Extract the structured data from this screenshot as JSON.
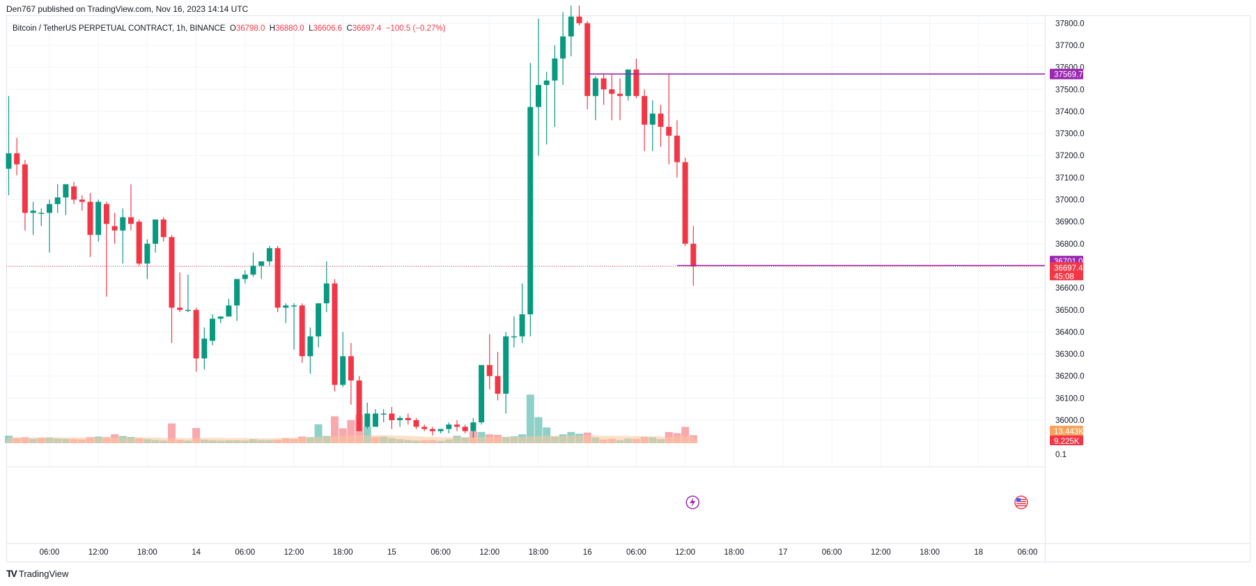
{
  "header": {
    "publish_line": "Den767 published on TradingView.com, Nov 16, 2023 14:14 UTC"
  },
  "legend": {
    "symbol": "Bitcoin / TetherUS PERPETUAL CONTRACT, 1h, BINANCE",
    "open_label": "O",
    "open": "36798.0",
    "high_label": "H",
    "high": "36880.0",
    "low_label": "L",
    "low": "36606.6",
    "close_label": "C",
    "close": "36697.4",
    "change": "−100.5 (−0.27%)"
  },
  "footer": {
    "brand": "TradingView"
  },
  "colors": {
    "up": "#089981",
    "down": "#f23645",
    "up_vol": "#8fd1c8",
    "down_vol": "#f7a9ae",
    "level_line": "#9c27b0",
    "vol_ma": "#fcc79e",
    "grid": "#f0f3fa"
  },
  "chart_data": {
    "type": "candlestick",
    "interval": "1h",
    "y_axis": {
      "ticks": [
        36000,
        36100,
        36200,
        36300,
        36400,
        36500,
        36600,
        36700,
        36800,
        36900,
        37000,
        37100,
        37200,
        37300,
        37400,
        37500,
        37600,
        37700,
        37800
      ],
      "tick_labels": [
        "36000.0",
        "36100.0",
        "36200.0",
        "36300.0",
        "36400.0",
        "36500.0",
        "36600.0",
        "",
        "36800.0",
        "36900.0",
        "37000.0",
        "37100.0",
        "37200.0",
        "37300.0",
        "37400.0",
        "37500.0",
        "37600.0",
        "37700.0",
        "37800.0"
      ],
      "range": [
        35880,
        37860
      ]
    },
    "x_axis": {
      "tick_labels": [
        "06:00",
        "12:00",
        "18:00",
        "14",
        "06:00",
        "12:00",
        "18:00",
        "15",
        "06:00",
        "12:00",
        "18:00",
        "16",
        "06:00",
        "12:00",
        "18:00",
        "17",
        "06:00",
        "12:00",
        "18:00",
        "18",
        "06:00"
      ],
      "tick_bar_index": [
        5,
        11,
        17,
        23,
        29,
        35,
        41,
        47,
        53,
        59,
        65,
        71,
        77,
        83,
        89,
        95,
        101,
        107,
        113,
        119,
        125
      ]
    },
    "candles": [
      [
        37140,
        37470,
        37020,
        37210
      ],
      [
        37210,
        37280,
        37110,
        37160
      ],
      [
        37160,
        37180,
        36860,
        36940
      ],
      [
        36940,
        36990,
        36840,
        36950
      ],
      [
        36940,
        36960,
        36880,
        36940
      ],
      [
        36940,
        37000,
        36760,
        36980
      ],
      [
        36980,
        37070,
        36940,
        37010
      ],
      [
        37010,
        37060,
        36930,
        37070
      ],
      [
        37060,
        37080,
        36980,
        37000
      ],
      [
        37000,
        37020,
        36950,
        36990
      ],
      [
        36990,
        37030,
        36740,
        36840
      ],
      [
        36840,
        37000,
        36810,
        36990
      ],
      [
        36980,
        36990,
        36560,
        36890
      ],
      [
        36880,
        36940,
        36800,
        36860
      ],
      [
        36860,
        36960,
        36710,
        36920
      ],
      [
        36920,
        37070,
        36860,
        36890
      ],
      [
        36900,
        36910,
        36700,
        36710
      ],
      [
        36710,
        36820,
        36640,
        36800
      ],
      [
        36800,
        36910,
        36760,
        36910
      ],
      [
        36910,
        36920,
        36810,
        36830
      ],
      [
        36830,
        36840,
        36350,
        36510
      ],
      [
        36510,
        36670,
        36490,
        36500
      ],
      [
        36500,
        36660,
        36490,
        36500
      ],
      [
        36500,
        36510,
        36220,
        36280
      ],
      [
        36280,
        36420,
        36230,
        36370
      ],
      [
        36360,
        36480,
        36340,
        36460
      ],
      [
        36460,
        36470,
        36440,
        36470
      ],
      [
        36470,
        36550,
        36470,
        36520
      ],
      [
        36520,
        36640,
        36450,
        36640
      ],
      [
        36640,
        36680,
        36620,
        36660
      ],
      [
        36660,
        36760,
        36650,
        36700
      ],
      [
        36700,
        36720,
        36640,
        36720
      ],
      [
        36720,
        36790,
        36700,
        36780
      ],
      [
        36780,
        36790,
        36490,
        36510
      ],
      [
        36510,
        36530,
        36440,
        36520
      ],
      [
        36520,
        36530,
        36320,
        36520
      ],
      [
        36520,
        36530,
        36260,
        36290
      ],
      [
        36290,
        36420,
        36210,
        36380
      ],
      [
        36380,
        36530,
        36330,
        36530
      ],
      [
        36530,
        36720,
        36490,
        36620
      ],
      [
        36620,
        36640,
        36130,
        36160
      ],
      [
        36160,
        36400,
        36150,
        36290
      ],
      [
        36290,
        36350,
        36070,
        36180
      ],
      [
        36180,
        36200,
        35950,
        35950
      ],
      [
        35970,
        36080,
        35960,
        36030
      ],
      [
        35970,
        36050,
        35970,
        36030
      ],
      [
        36030,
        36050,
        35990,
        36030
      ],
      [
        36030,
        36060,
        35960,
        36000
      ],
      [
        36000,
        36020,
        35970,
        36010
      ],
      [
        36010,
        36030,
        35980,
        36000
      ],
      [
        36000,
        36010,
        35960,
        35970
      ],
      [
        35970,
        35980,
        35950,
        35960
      ],
      [
        35960,
        35970,
        35930,
        35950
      ],
      [
        35950,
        35960,
        35940,
        35960
      ],
      [
        35960,
        35990,
        35940,
        35980
      ],
      [
        35980,
        36000,
        35950,
        35970
      ],
      [
        35970,
        35980,
        35940,
        35950
      ],
      [
        35950,
        36010,
        35920,
        35990
      ],
      [
        35990,
        36250,
        35980,
        36250
      ],
      [
        36250,
        36390,
        36140,
        36200
      ],
      [
        36200,
        36310,
        36090,
        36120
      ],
      [
        36120,
        36400,
        36030,
        36380
      ],
      [
        36380,
        36470,
        36330,
        36380
      ],
      [
        36380,
        36620,
        36350,
        36480
      ],
      [
        36480,
        37620,
        36380,
        37420
      ],
      [
        37420,
        37820,
        37200,
        37520
      ],
      [
        37520,
        37580,
        37250,
        37540
      ],
      [
        37540,
        37700,
        37330,
        37640
      ],
      [
        37640,
        37850,
        37520,
        37740
      ],
      [
        37740,
        37880,
        37650,
        37830
      ],
      [
        37830,
        37880,
        37790,
        37800
      ],
      [
        37800,
        37810,
        37410,
        37470
      ],
      [
        37470,
        37560,
        37360,
        37550
      ],
      [
        37550,
        37570,
        37430,
        37500
      ],
      [
        37500,
        37570,
        37360,
        37480
      ],
      [
        37480,
        37550,
        37360,
        37470
      ],
      [
        37470,
        37590,
        37450,
        37590
      ],
      [
        37590,
        37640,
        37460,
        37470
      ],
      [
        37470,
        37500,
        37220,
        37340
      ],
      [
        37340,
        37450,
        37220,
        37390
      ],
      [
        37390,
        37430,
        37240,
        37330
      ],
      [
        37330,
        37570,
        37160,
        37290
      ],
      [
        37290,
        37360,
        37100,
        37170
      ],
      [
        37170,
        37190,
        36790,
        36800
      ],
      [
        36800,
        36880,
        36610,
        36697
      ]
    ],
    "volumes": [
      [
        1.3,
        "up"
      ],
      [
        0.9,
        "down"
      ],
      [
        1.05,
        "down"
      ],
      [
        0.75,
        "up"
      ],
      [
        0.95,
        "down"
      ],
      [
        1.0,
        "up"
      ],
      [
        0.8,
        "up"
      ],
      [
        0.75,
        "up"
      ],
      [
        0.7,
        "down"
      ],
      [
        0.65,
        "down"
      ],
      [
        1.05,
        "down"
      ],
      [
        1.15,
        "up"
      ],
      [
        1.05,
        "down"
      ],
      [
        1.55,
        "down"
      ],
      [
        1.25,
        "up"
      ],
      [
        1.1,
        "up"
      ],
      [
        0.85,
        "down"
      ],
      [
        0.7,
        "up"
      ],
      [
        0.55,
        "up"
      ],
      [
        0.45,
        "up"
      ],
      [
        3.45,
        "down"
      ],
      [
        0.55,
        "down"
      ],
      [
        0.45,
        "up"
      ],
      [
        2.65,
        "down"
      ],
      [
        0.6,
        "up"
      ],
      [
        0.5,
        "up"
      ],
      [
        0.45,
        "up"
      ],
      [
        0.5,
        "up"
      ],
      [
        0.5,
        "up"
      ],
      [
        0.45,
        "up"
      ],
      [
        0.7,
        "up"
      ],
      [
        0.55,
        "up"
      ],
      [
        0.55,
        "up"
      ],
      [
        0.6,
        "down"
      ],
      [
        0.85,
        "down"
      ],
      [
        0.75,
        "down"
      ],
      [
        1.15,
        "down"
      ],
      [
        1.05,
        "up"
      ],
      [
        3.3,
        "up"
      ],
      [
        1.25,
        "up"
      ],
      [
        4.7,
        "down"
      ],
      [
        2.6,
        "down"
      ],
      [
        4.05,
        "down"
      ],
      [
        5.0,
        "down"
      ],
      [
        2.85,
        "up"
      ],
      [
        1.05,
        "down"
      ],
      [
        1.15,
        "up"
      ],
      [
        0.9,
        "up"
      ],
      [
        0.7,
        "up"
      ],
      [
        0.55,
        "up"
      ],
      [
        0.45,
        "up"
      ],
      [
        0.5,
        "down"
      ],
      [
        0.55,
        "down"
      ],
      [
        0.4,
        "up"
      ],
      [
        0.65,
        "up"
      ],
      [
        1.3,
        "up"
      ],
      [
        1.0,
        "up"
      ],
      [
        2.05,
        "down"
      ],
      [
        1.95,
        "up"
      ],
      [
        1.55,
        "down"
      ],
      [
        1.45,
        "down"
      ],
      [
        1.1,
        "up"
      ],
      [
        1.2,
        "up"
      ],
      [
        1.55,
        "up"
      ],
      [
        8.5,
        "up"
      ],
      [
        4.55,
        "up"
      ],
      [
        2.75,
        "up"
      ],
      [
        1.15,
        "up"
      ],
      [
        1.55,
        "up"
      ],
      [
        1.95,
        "up"
      ],
      [
        1.65,
        "up"
      ],
      [
        1.85,
        "down"
      ],
      [
        1.0,
        "up"
      ],
      [
        0.65,
        "down"
      ],
      [
        0.75,
        "down"
      ],
      [
        0.55,
        "up"
      ],
      [
        0.8,
        "up"
      ],
      [
        0.75,
        "down"
      ],
      [
        1.1,
        "down"
      ],
      [
        1.05,
        "up"
      ],
      [
        0.7,
        "up"
      ],
      [
        1.95,
        "down"
      ],
      [
        1.75,
        "down"
      ],
      [
        2.85,
        "down"
      ],
      [
        1.4,
        "down"
      ]
    ],
    "volume_ma": [
      1.0,
      1.0,
      1.0,
      1.0,
      1.0,
      1.0,
      1.0,
      1.0,
      1.0,
      1.0,
      1.0,
      1.0,
      1.0,
      1.0,
      1.05,
      1.05,
      1.05,
      1.0,
      1.0,
      0.95,
      0.9,
      0.9,
      0.9,
      0.95,
      0.95,
      0.95,
      0.95,
      0.9,
      0.9,
      0.9,
      0.85,
      0.85,
      0.85,
      0.9,
      0.95,
      0.95,
      1.0,
      1.05,
      1.1,
      1.15,
      1.2,
      1.25,
      1.35,
      1.4,
      1.4,
      1.4,
      1.4,
      1.35,
      1.3,
      1.25,
      1.2,
      1.15,
      1.1,
      1.05,
      1.05,
      1.05,
      1.05,
      1.1,
      1.1,
      1.1,
      1.1,
      1.1,
      1.1,
      1.1,
      1.2,
      1.25,
      1.3,
      1.3,
      1.3,
      1.35,
      1.35,
      1.35,
      1.35,
      1.3,
      1.3,
      1.25,
      1.25,
      1.25,
      1.2,
      1.2,
      1.15,
      1.15,
      1.15,
      1.2,
      1.2
    ],
    "levels": [
      {
        "price": 37569.7,
        "label": "37569.7",
        "from_bar": 71
      },
      {
        "price": 36701.0,
        "label": "36701.0",
        "from_bar": 82
      }
    ],
    "last_price": {
      "price": 36697.4,
      "label": "36697.4",
      "countdown": "45:08"
    },
    "volume_labels": {
      "ma": "13.443K",
      "current": "9.225K"
    },
    "volume_axis_label": "0.1"
  }
}
